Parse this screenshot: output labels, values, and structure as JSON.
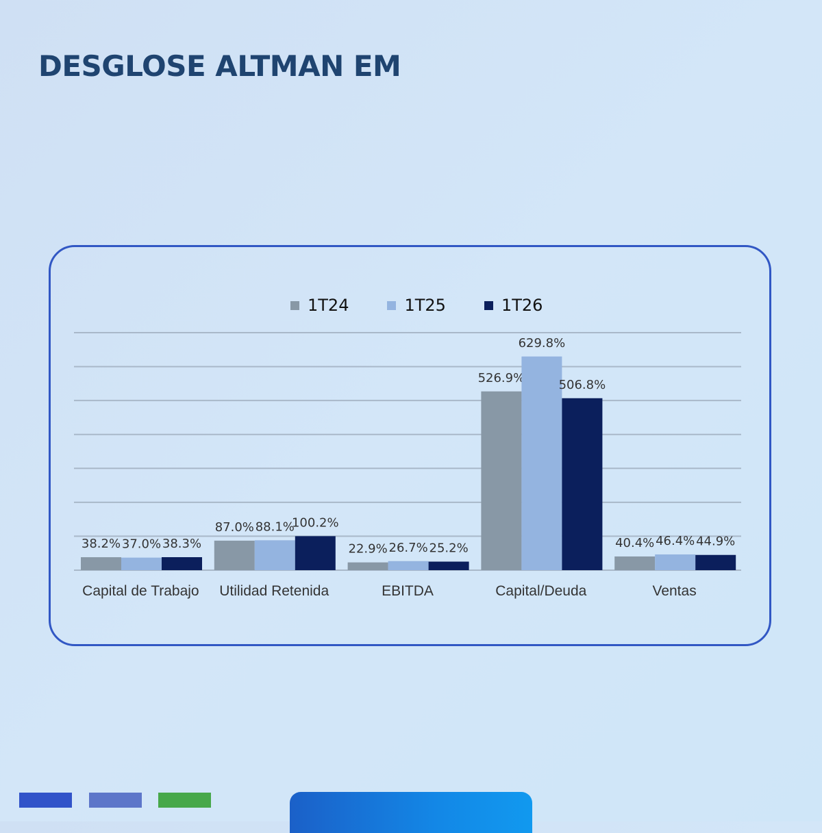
{
  "title": "DESGLOSE ALTMAN EM",
  "chart_data": {
    "type": "bar",
    "title": "",
    "xlabel": "",
    "ylabel": "",
    "categories": [
      "Capital de Trabajo",
      "Utilidad Retenida",
      "EBITDA",
      "Capital/Deuda",
      "Ventas"
    ],
    "series": [
      {
        "name": "1T24",
        "color": "#8898a6",
        "values": [
          38.2,
          87.0,
          22.9,
          526.9,
          40.4
        ],
        "labels": [
          "38.2%",
          "87.0%",
          "22.9%",
          "526.9%",
          "40.4%"
        ]
      },
      {
        "name": "1T25",
        "color": "#94b4e0",
        "values": [
          37.0,
          88.1,
          26.7,
          629.8,
          46.4
        ],
        "labels": [
          "37.0%",
          "88.1%",
          "26.7%",
          "629.8%",
          "46.4%"
        ]
      },
      {
        "name": "1T26",
        "color": "#0b1f5c",
        "values": [
          38.3,
          100.2,
          25.2,
          506.8,
          44.9
        ],
        "labels": [
          "38.3%",
          "100.2%",
          "25.2%",
          "506.8%",
          "44.9%"
        ]
      }
    ],
    "ylim": [
      0,
      700
    ],
    "y_gridlines": [
      100,
      200,
      300,
      400,
      500,
      600,
      700
    ],
    "y_tick_labels_shown": false,
    "grid": true,
    "legend_position": "top-center"
  }
}
